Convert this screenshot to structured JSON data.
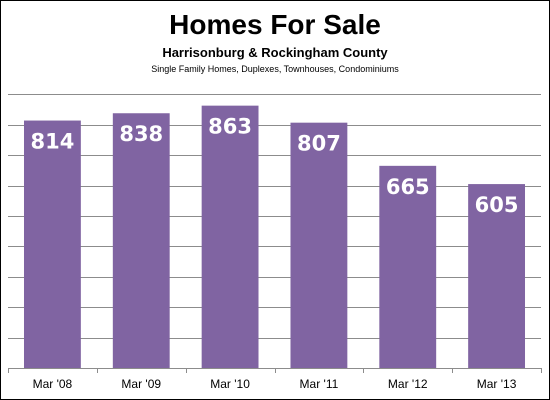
{
  "chart_data": {
    "type": "bar",
    "title": "Homes For Sale",
    "subtitle": "Harrisonburg & Rockingham County",
    "note": "Single Family Homes, Duplexes, Townhouses, Condominiums",
    "categories": [
      "Mar '08",
      "Mar '09",
      "Mar '10",
      "Mar '11",
      "Mar '12",
      "Mar '13"
    ],
    "values": [
      814,
      838,
      863,
      807,
      665,
      605
    ],
    "xlabel": "",
    "ylabel": "",
    "ylim": [
      0,
      1000
    ],
    "grid": true,
    "legend": "none",
    "bar_color": "#8064A2",
    "label_color": "#FFFFFF",
    "grid_color": "#8C8C8C"
  }
}
